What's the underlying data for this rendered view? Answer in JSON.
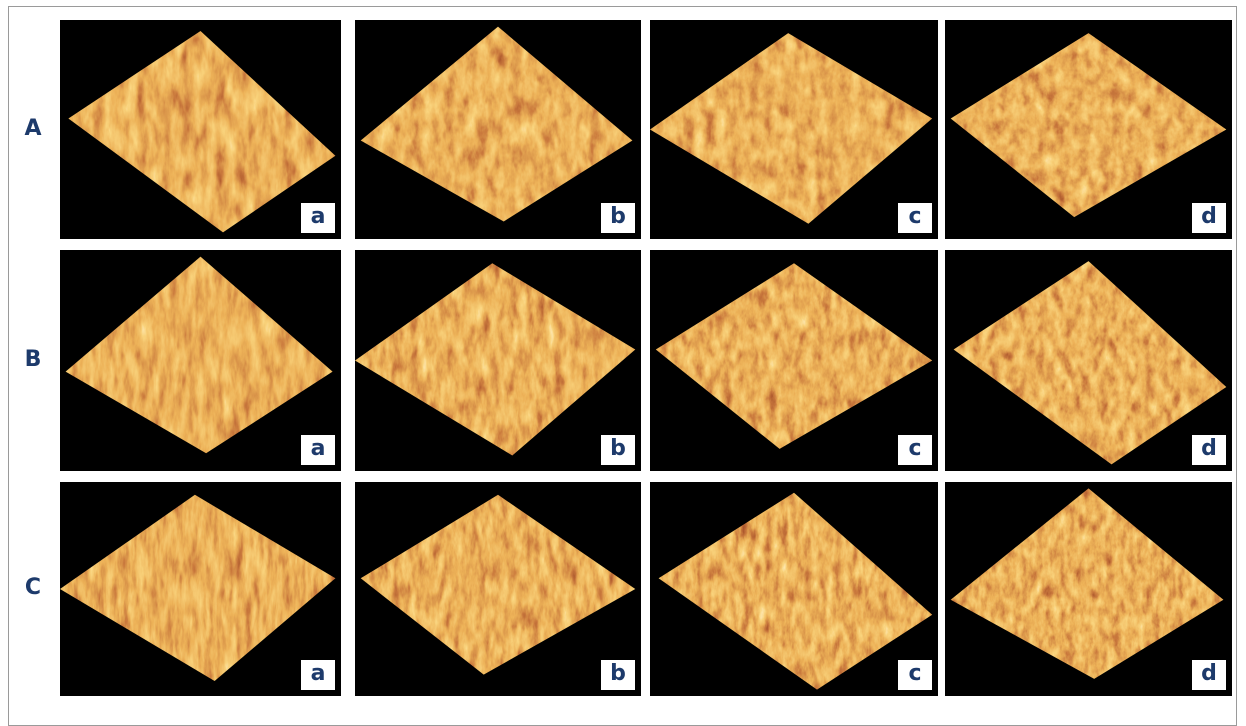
{
  "rows": [
    {
      "label": "A",
      "panels": [
        "a",
        "b",
        "c",
        "d"
      ]
    },
    {
      "label": "B",
      "panels": [
        "a",
        "b",
        "c",
        "d"
      ]
    },
    {
      "label": "C",
      "panels": [
        "a",
        "b",
        "c",
        "d"
      ]
    }
  ]
}
